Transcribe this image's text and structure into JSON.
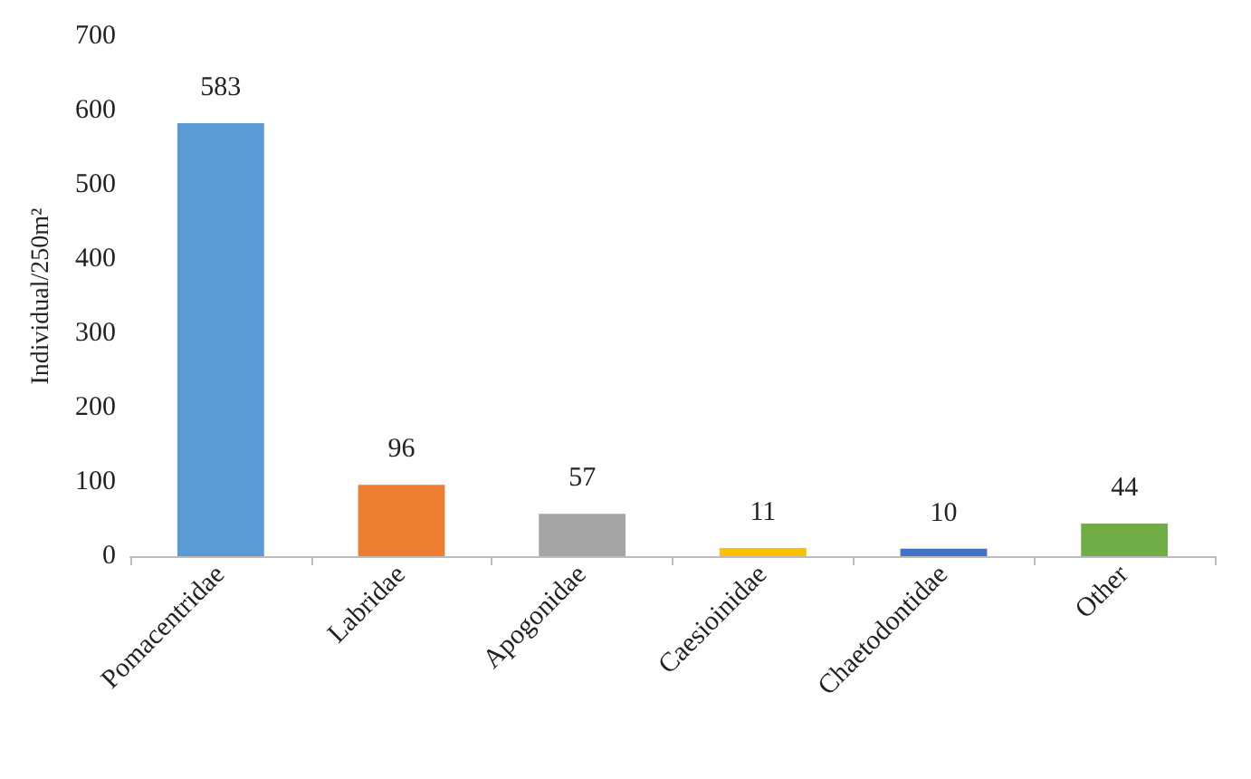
{
  "chart_data": {
    "type": "bar",
    "ylabel": "Individual/250m²",
    "categories": [
      "Pomacentridae",
      "Labridae",
      "Apogonidae",
      "Caesioinidae",
      "Chaetodontidae",
      "Other"
    ],
    "values": [
      583,
      96,
      57,
      11,
      10,
      44
    ],
    "colors": [
      "#5b9bd5",
      "#ed7d31",
      "#a5a5a5",
      "#ffc000",
      "#4472c4",
      "#70ad47"
    ],
    "ylim": [
      0,
      700
    ],
    "yticks": [
      0,
      100,
      200,
      300,
      400,
      500,
      600,
      700
    ],
    "grid": false,
    "data_labels": true
  }
}
